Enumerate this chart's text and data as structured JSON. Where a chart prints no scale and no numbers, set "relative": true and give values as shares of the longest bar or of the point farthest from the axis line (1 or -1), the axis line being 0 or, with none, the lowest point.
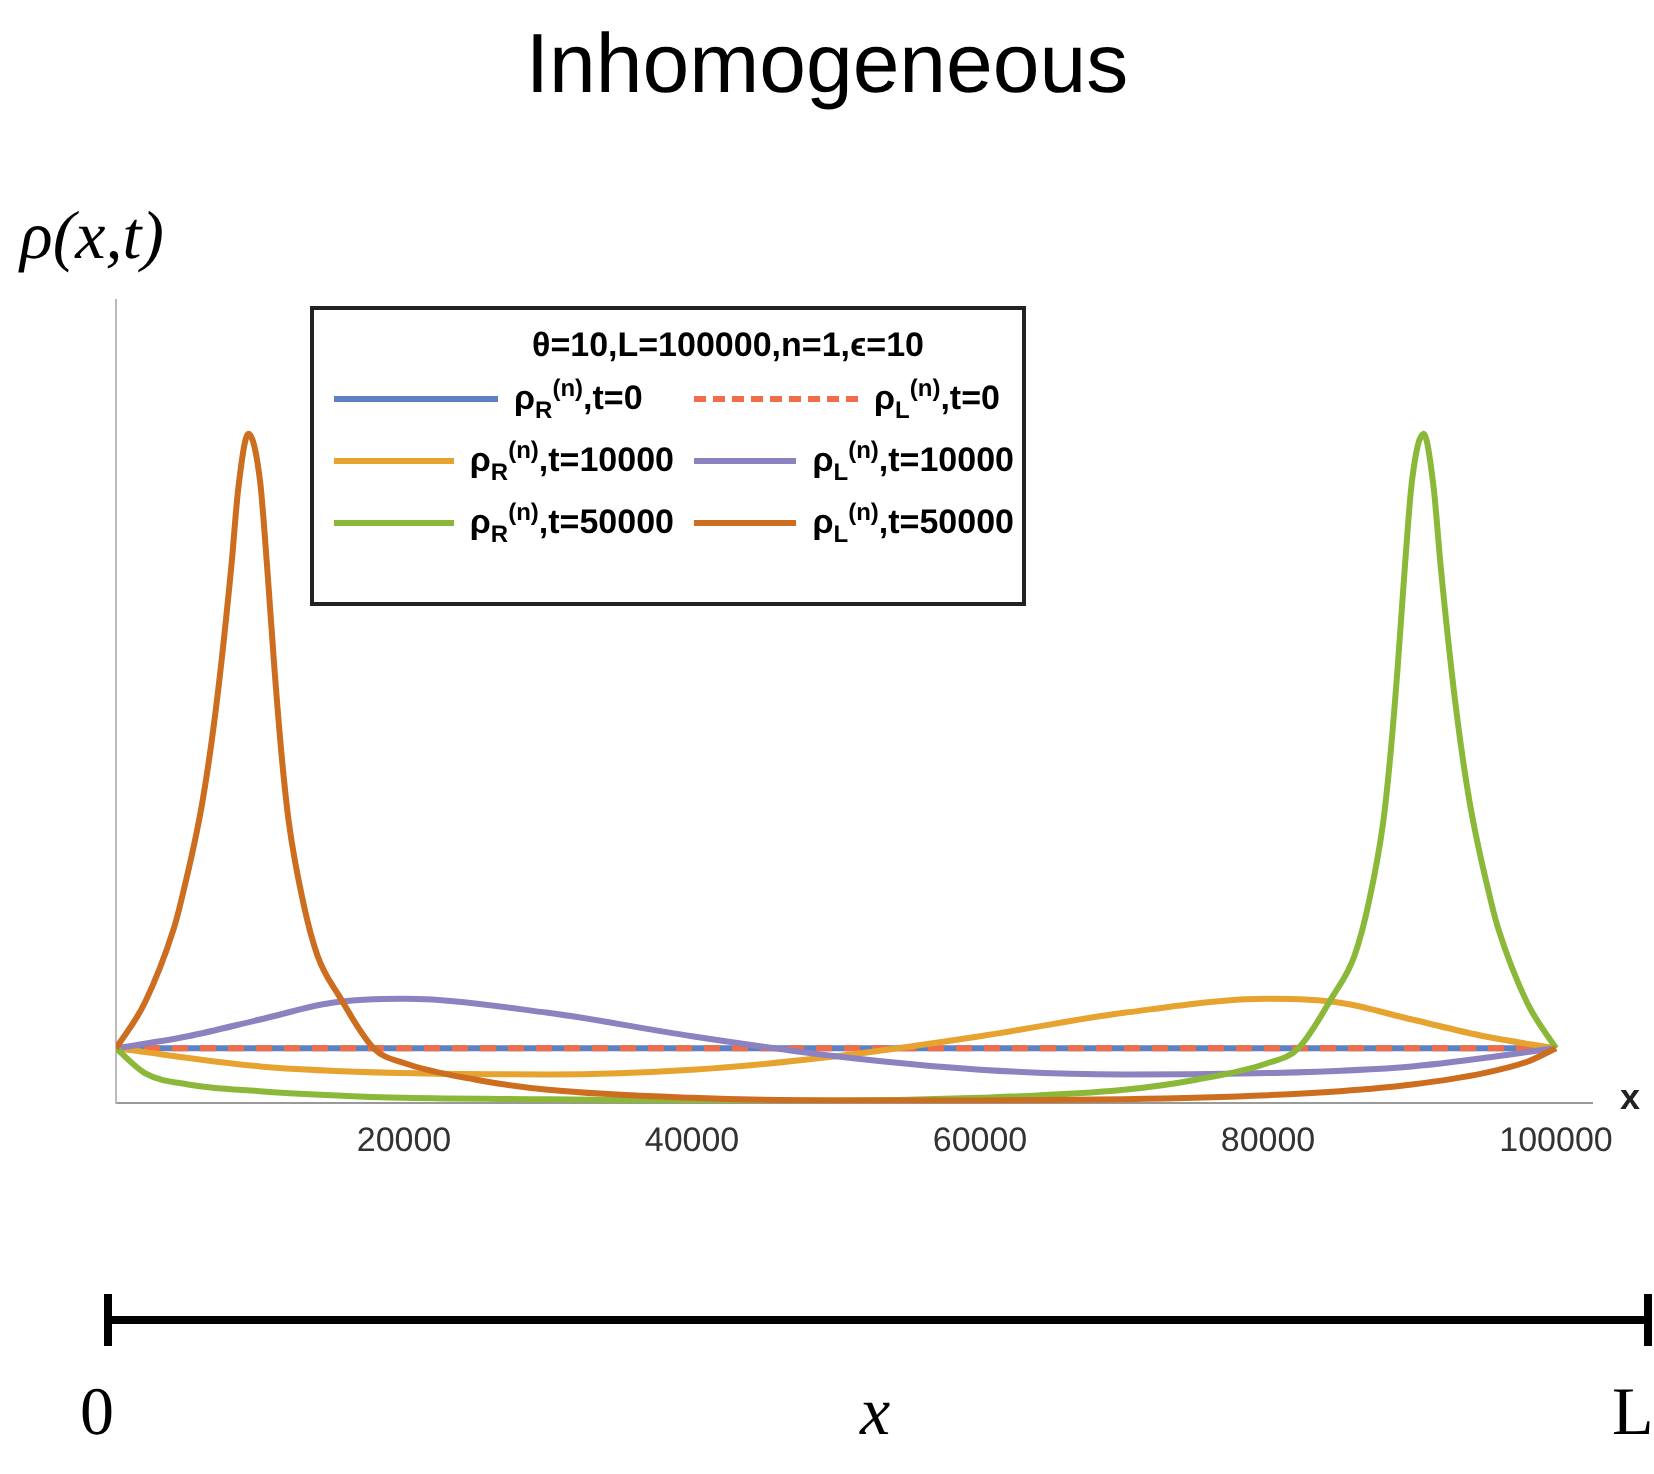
{
  "chart_data": {
    "type": "line",
    "title": "Inhomogeneous",
    "ylabel": "ρ(x,t)",
    "xlabel": "x",
    "legend_title": "θ=10,L=100000,n=1,ϵ=10",
    "legend": "top",
    "relative": true,
    "xlim": [
      0,
      102500
    ],
    "xticks": [
      20000,
      40000,
      60000,
      80000,
      100000
    ],
    "grid": false,
    "marker": "none",
    "annotations": [
      "0",
      "L",
      "x"
    ],
    "series": [
      {
        "name": "ρ$_{R}$$^{(n)}$,t=0",
        "color": "#5e81c4",
        "line_style": "solid",
        "x": [
          0,
          100000
        ],
        "values": [
          0.082,
          0.082
        ]
      },
      {
        "name": "ρ$_{L}$$^{(n)}$,t=0",
        "color": "#f06d4a",
        "line_style": "dashed",
        "x": [
          0,
          100000
        ],
        "values": [
          0.082,
          0.082
        ]
      },
      {
        "name": "ρ$_{R}$$^{(n)}$,t=10000",
        "color": "#e6a330",
        "line_style": "solid",
        "x": [
          0,
          10000,
          20000,
          30000,
          40000,
          50000,
          60000,
          70000,
          80000,
          85000,
          90000,
          95000,
          100000
        ],
        "values": [
          0.082,
          0.055,
          0.045,
          0.043,
          0.05,
          0.07,
          0.1,
          0.135,
          0.156,
          0.15,
          0.125,
          0.1,
          0.082
        ]
      },
      {
        "name": "ρ$_{L}$$^{(n)}$,t=10000",
        "color": "#8d82c0",
        "line_style": "solid",
        "x": [
          0,
          5000,
          10000,
          15000,
          20000,
          30000,
          40000,
          50000,
          60000,
          70000,
          80000,
          90000,
          100000
        ],
        "values": [
          0.082,
          0.1,
          0.125,
          0.15,
          0.156,
          0.135,
          0.1,
          0.07,
          0.05,
          0.043,
          0.045,
          0.055,
          0.082
        ]
      },
      {
        "name": "ρ$_{R}$$^{(n)}$,t=50000",
        "color": "#8cb83a",
        "line_style": "solid",
        "x": [
          0,
          2000,
          5000,
          10000,
          15000,
          20000,
          30000,
          40000,
          50000,
          60000,
          70000,
          75000,
          80000,
          82100,
          84500,
          86000,
          87000,
          88000,
          88500,
          89000,
          89500,
          90000,
          90800,
          91500,
          92000,
          93000,
          94000,
          95500,
          96000,
          98000,
          100000
        ],
        "values": [
          0.082,
          0.045,
          0.028,
          0.018,
          0.012,
          0.008,
          0.006,
          0.004,
          0.004,
          0.008,
          0.02,
          0.035,
          0.06,
          0.082,
          0.16,
          0.22,
          0.3,
          0.42,
          0.52,
          0.65,
          0.8,
          0.93,
          1.0,
          0.92,
          0.8,
          0.6,
          0.45,
          0.3,
          0.26,
          0.15,
          0.082
        ]
      },
      {
        "name": "ρ$_{L}$$^{(n)}$,t=50000",
        "color": "#cc6d1f",
        "line_style": "solid",
        "x": [
          0,
          2000,
          4000,
          4500,
          6000,
          7000,
          8000,
          8500,
          9200,
          10000,
          10500,
          11000,
          11500,
          12000,
          13000,
          14000,
          15500,
          17900,
          20000,
          25000,
          30000,
          40000,
          50000,
          60000,
          70000,
          80000,
          85000,
          90000,
          95000,
          98000,
          100000
        ],
        "values": [
          0.082,
          0.15,
          0.26,
          0.3,
          0.45,
          0.6,
          0.8,
          0.92,
          1.0,
          0.93,
          0.8,
          0.65,
          0.52,
          0.42,
          0.3,
          0.22,
          0.16,
          0.082,
          0.06,
          0.035,
          0.02,
          0.008,
          0.004,
          0.004,
          0.006,
          0.012,
          0.018,
          0.028,
          0.045,
          0.062,
          0.082
        ]
      }
    ]
  }
}
